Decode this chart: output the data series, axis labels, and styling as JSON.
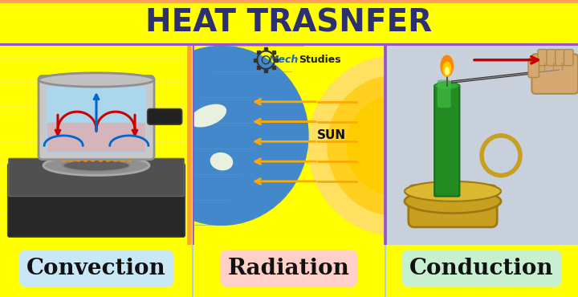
{
  "title": "HEAT TRASNFER",
  "title_bg": "#F08080",
  "title_color": "#2C3070",
  "title_fontsize": 28,
  "bottom_bg": "#FFFF00",
  "labels": [
    "Convection",
    "Radiation",
    "Conduction"
  ],
  "label_bg_colors": [
    "#C8E8F8",
    "#FFD0C8",
    "#C8F0D0"
  ],
  "label_fontsize": 20,
  "panel1_bg": "#F0F0F0",
  "panel2_bg": "#78C8B0",
  "panel3_bg": "#C8D0DC",
  "fig_width": 7.2,
  "fig_height": 3.7,
  "title_border_bottom": "#9944BB",
  "title_border_top": "#FF9944"
}
